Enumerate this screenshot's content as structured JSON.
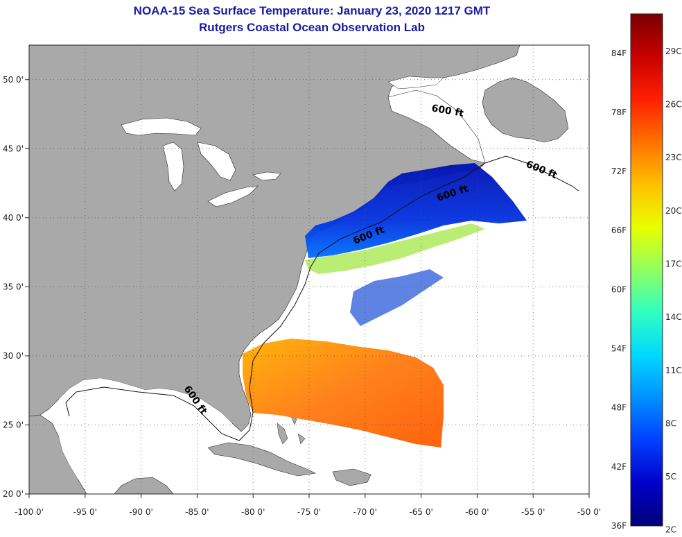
{
  "title": "NOAA-15 Sea Surface Temperature:  January 23, 2020 1217 GMT",
  "subtitle": "Rutgers Coastal Ocean Observation Lab",
  "map": {
    "lon_range": [
      -100,
      -50
    ],
    "lat_range": [
      20,
      52.5
    ],
    "lon_ticks": [
      {
        "value": -100,
        "label": "-100 0'"
      },
      {
        "value": -95,
        "label": "-95 0'"
      },
      {
        "value": -90,
        "label": "-90 0'"
      },
      {
        "value": -85,
        "label": "-85 0'"
      },
      {
        "value": -80,
        "label": "-80 0'"
      },
      {
        "value": -75,
        "label": "-75 0'"
      },
      {
        "value": -70,
        "label": "-70 0'"
      },
      {
        "value": -65,
        "label": "-65 0'"
      },
      {
        "value": -60,
        "label": "-60 0'"
      },
      {
        "value": -55,
        "label": "-55 0'"
      },
      {
        "value": -50,
        "label": "-50 0'"
      }
    ],
    "lat_ticks": [
      {
        "value": 50,
        "label": "50 0'"
      },
      {
        "value": 45,
        "label": "45 0'"
      },
      {
        "value": 40,
        "label": "40 0'"
      },
      {
        "value": 35,
        "label": "35 0'"
      },
      {
        "value": 30,
        "label": "30 0'"
      },
      {
        "value": 25,
        "label": "25 0'"
      },
      {
        "value": 20,
        "label": "20 0'"
      }
    ],
    "grid": "dotted",
    "land_color": "#a9a9a9",
    "ocean_color": "#ffffff",
    "contour_labels": [
      "600 ft",
      "600 ft",
      "600 ft",
      "600 ft",
      "600 ft"
    ]
  },
  "colorbar": {
    "min_f": 36,
    "max_f": 88,
    "fahrenheit_labels": [
      "84F",
      "78F",
      "72F",
      "66F",
      "60F",
      "54F",
      "48F",
      "42F",
      "36F"
    ],
    "celsius_labels": [
      "29C",
      "26C",
      "23C",
      "20C",
      "17C",
      "14C",
      "11C",
      "8C",
      "5C",
      "2C"
    ],
    "colors": [
      "#00007a",
      "#0000c8",
      "#0040ff",
      "#0090ff",
      "#00d8ff",
      "#30ffc0",
      "#90ff60",
      "#e8ff00",
      "#ffc000",
      "#ff7000",
      "#ff2000",
      "#c80000",
      "#7a0000"
    ]
  }
}
